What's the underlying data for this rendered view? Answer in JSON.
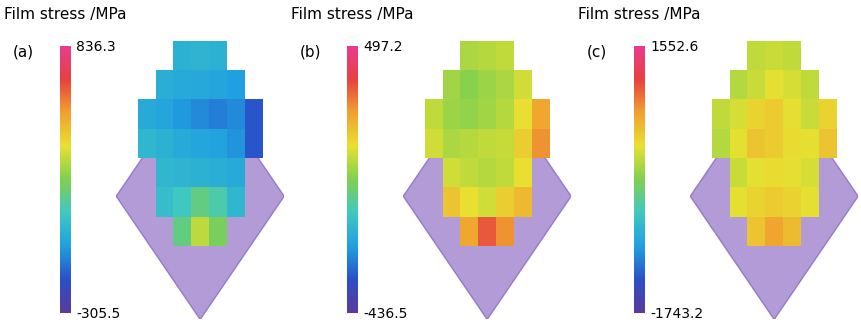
{
  "chart_data": [
    {
      "type": "heatmap",
      "title": "(a)",
      "colorbar_label": "Film stress /MPa",
      "colorbar_range": [
        -305.5,
        836.3
      ],
      "colorbar_ticks": [
        -305.5,
        836.3
      ],
      "cells": [
        [
          null,
          null,
          40,
          50,
          40,
          null,
          null
        ],
        [
          null,
          30,
          20,
          10,
          0,
          -20,
          null
        ],
        [
          20,
          0,
          -30,
          -60,
          -80,
          -60,
          -150
        ],
        [
          60,
          40,
          20,
          0,
          -10,
          -40,
          -150
        ],
        [
          null,
          60,
          50,
          40,
          30,
          20,
          null
        ],
        [
          null,
          80,
          120,
          200,
          150,
          60,
          null
        ],
        [
          null,
          null,
          200,
          350,
          250,
          null,
          null
        ]
      ]
    },
    {
      "type": "heatmap",
      "title": "(b)",
      "colorbar_label": "Film stress /MPa",
      "colorbar_range": [
        -436.5,
        497.2
      ],
      "colorbar_ticks": [
        -436.5,
        497.2
      ],
      "cells": [
        [
          null,
          null,
          80,
          90,
          100,
          null,
          null
        ],
        [
          null,
          70,
          40,
          60,
          80,
          120,
          null
        ],
        [
          100,
          60,
          50,
          70,
          90,
          150,
          250
        ],
        [
          120,
          80,
          90,
          100,
          110,
          180,
          280
        ],
        [
          null,
          120,
          100,
          90,
          100,
          150,
          null
        ],
        [
          null,
          200,
          150,
          120,
          180,
          220,
          null
        ],
        [
          null,
          null,
          250,
          350,
          280,
          null,
          null
        ]
      ]
    },
    {
      "type": "heatmap",
      "title": "(c)",
      "colorbar_label": "Film stress /MPa",
      "colorbar_range": [
        -1743.2,
        1552.6
      ],
      "colorbar_ticks": [
        -1743.2,
        1552.6
      ],
      "cells": [
        [
          null,
          null,
          150,
          200,
          150,
          null,
          null
        ],
        [
          null,
          100,
          200,
          300,
          250,
          150,
          null
        ],
        [
          150,
          250,
          400,
          450,
          300,
          200,
          400
        ],
        [
          100,
          300,
          500,
          450,
          350,
          300,
          500
        ],
        [
          null,
          200,
          300,
          350,
          300,
          250,
          null
        ],
        [
          null,
          300,
          400,
          450,
          400,
          300,
          null
        ],
        [
          null,
          null,
          500,
          700,
          550,
          null,
          null
        ]
      ]
    }
  ]
}
